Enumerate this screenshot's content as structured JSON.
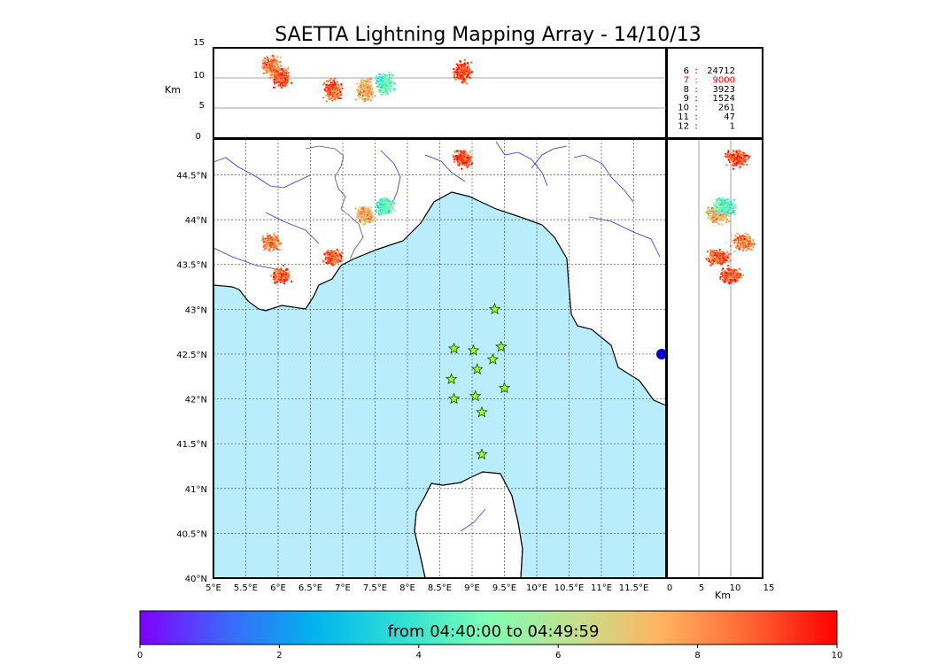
{
  "title": "SAETTA Lightning Mapping Array - 14/10/13",
  "alt_axis": {
    "label": "Km",
    "ticks": [
      "0",
      "5",
      "10",
      "15"
    ]
  },
  "lat_ticks": [
    "40°N",
    "40.5°N",
    "41°N",
    "41.5°N",
    "42°N",
    "42.5°N",
    "43°N",
    "43.5°N",
    "44°N",
    "44.5°N"
  ],
  "lon_ticks": [
    "5°E",
    "5.5°E",
    "6°E",
    "6.5°E",
    "7°E",
    "7.5°E",
    "8°E",
    "8.5°E",
    "9°E",
    "9.5°E",
    "10°E",
    "10.5°E",
    "11°E",
    "11.5°E"
  ],
  "right_axis": {
    "label": "Km",
    "ticks": [
      "0",
      "5",
      "10",
      "15"
    ]
  },
  "station_counts": [
    {
      "stations": "6",
      "sep": ":",
      "count": "24712",
      "color": "#000000"
    },
    {
      "stations": "7",
      "sep": ":",
      "count": "9000",
      "color": "#ff0000"
    },
    {
      "stations": "8",
      "sep": ":",
      "count": "3923",
      "color": "#000000"
    },
    {
      "stations": "9",
      "sep": ":",
      "count": "1524",
      "color": "#000000"
    },
    {
      "stations": "10",
      "sep": ":",
      "count": "261",
      "color": "#000000"
    },
    {
      "stations": "11",
      "sep": ":",
      "count": "47",
      "color": "#000000"
    },
    {
      "stations": "12",
      "sep": ":",
      "count": "1",
      "color": "#000000"
    }
  ],
  "colorbar": {
    "label": "from 04:40:00 to 04:49:59",
    "ticks": [
      "0",
      "2",
      "4",
      "6",
      "8",
      "10"
    ],
    "range": [
      0,
      10
    ],
    "colors": [
      "#7f00ff",
      "#3c67fa",
      "#00b4ec",
      "#30e0d5",
      "#7ffeb4",
      "#c4e08d",
      "#ffb360",
      "#ff6433",
      "#ff0000"
    ]
  },
  "sea_color": "#b9edfb",
  "station_marker_color": "#99ff33",
  "stations": [
    {
      "lon": 9.35,
      "lat": 43.0
    },
    {
      "lon": 8.72,
      "lat": 42.56
    },
    {
      "lon": 9.02,
      "lat": 42.54
    },
    {
      "lon": 9.45,
      "lat": 42.58
    },
    {
      "lon": 9.32,
      "lat": 42.44
    },
    {
      "lon": 9.08,
      "lat": 42.33
    },
    {
      "lon": 8.68,
      "lat": 42.22
    },
    {
      "lon": 9.5,
      "lat": 42.12
    },
    {
      "lon": 8.72,
      "lat": 42.0
    },
    {
      "lon": 9.05,
      "lat": 42.03
    },
    {
      "lon": 9.15,
      "lat": 41.85
    },
    {
      "lon": 9.15,
      "lat": 41.38
    }
  ],
  "lightning_clusters": [
    {
      "lon": 8.85,
      "lat": 44.68,
      "time": 9.0,
      "alt": 11
    },
    {
      "lon": 7.35,
      "lat": 44.05,
      "time": 7.5,
      "alt": 8
    },
    {
      "lon": 7.65,
      "lat": 44.15,
      "time": 4.5,
      "alt": 9
    },
    {
      "lon": 6.05,
      "lat": 43.38,
      "time": 8.8,
      "alt": 10
    },
    {
      "lon": 6.85,
      "lat": 43.58,
      "time": 8.5,
      "alt": 8
    },
    {
      "lon": 5.9,
      "lat": 43.75,
      "time": 8.0,
      "alt": 12
    }
  ]
}
